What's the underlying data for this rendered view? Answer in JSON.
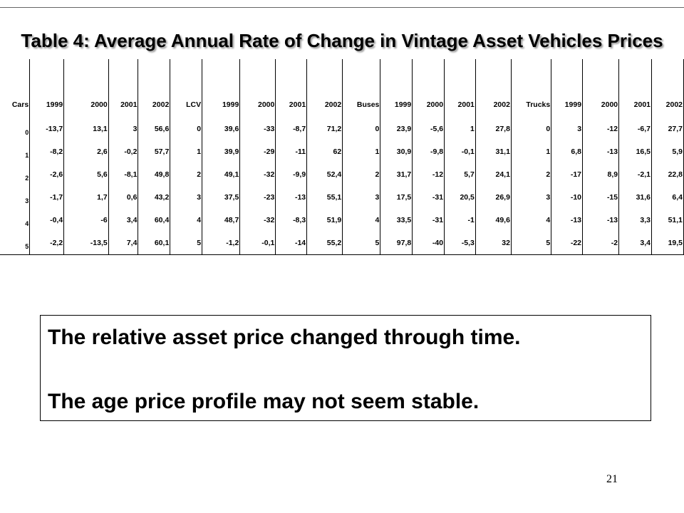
{
  "slide": {
    "title": "Table 4: Average Annual Rate of Change in Vintage Asset Vehicles Prices",
    "page_number": "21"
  },
  "table": {
    "headers": [
      "Cars",
      "1999",
      "2000",
      "2001",
      "2002",
      "LCV",
      "1999",
      "2000",
      "2001",
      "2002",
      "Buses",
      "1999",
      "2000",
      "2001",
      "2002",
      "Trucks",
      "1999",
      "2000",
      "2001",
      "2002"
    ],
    "rows": [
      [
        "0",
        "-13,7",
        "13,1",
        "3",
        "56,6",
        "0",
        "39,6",
        "-33",
        "-8,7",
        "71,2",
        "0",
        "23,9",
        "-5,6",
        "1",
        "27,8",
        "0",
        "3",
        "-12",
        "-6,7",
        "27,7"
      ],
      [
        "1",
        "-8,2",
        "2,6",
        "-0,2",
        "57,7",
        "1",
        "39,9",
        "-29",
        "-11",
        "62",
        "1",
        "30,9",
        "-9,8",
        "-0,1",
        "31,1",
        "1",
        "6,8",
        "-13",
        "16,5",
        "5,9"
      ],
      [
        "2",
        "-2,6",
        "5,6",
        "-8,1",
        "49,8",
        "2",
        "49,1",
        "-32",
        "-9,9",
        "52,4",
        "2",
        "31,7",
        "-12",
        "5,7",
        "24,1",
        "2",
        "-17",
        "8,9",
        "-2,1",
        "22,8"
      ],
      [
        "3",
        "-1,7",
        "1,7",
        "0,6",
        "43,2",
        "3",
        "37,5",
        "-23",
        "-13",
        "55,1",
        "3",
        "17,5",
        "-31",
        "20,5",
        "26,9",
        "3",
        "-10",
        "-15",
        "31,6",
        "6,4"
      ],
      [
        "4",
        "-0,4",
        "-6",
        "3,4",
        "60,4",
        "4",
        "48,7",
        "-32",
        "-8,3",
        "51,9",
        "4",
        "33,5",
        "-31",
        "-1",
        "49,6",
        "4",
        "-13",
        "-13",
        "3,3",
        "51,1"
      ],
      [
        "5",
        "-2,2",
        "-13,5",
        "7,4",
        "60,1",
        "5",
        "-1,2",
        "-0,1",
        "-14",
        "55,2",
        "5",
        "97,8",
        "-40",
        "-5,3",
        "32",
        "5",
        "-22",
        "-2",
        "3,4",
        "19,5"
      ]
    ]
  },
  "callout": {
    "line1": "The relative asset price changed through time.",
    "line2": "The age price profile may not seem stable."
  }
}
